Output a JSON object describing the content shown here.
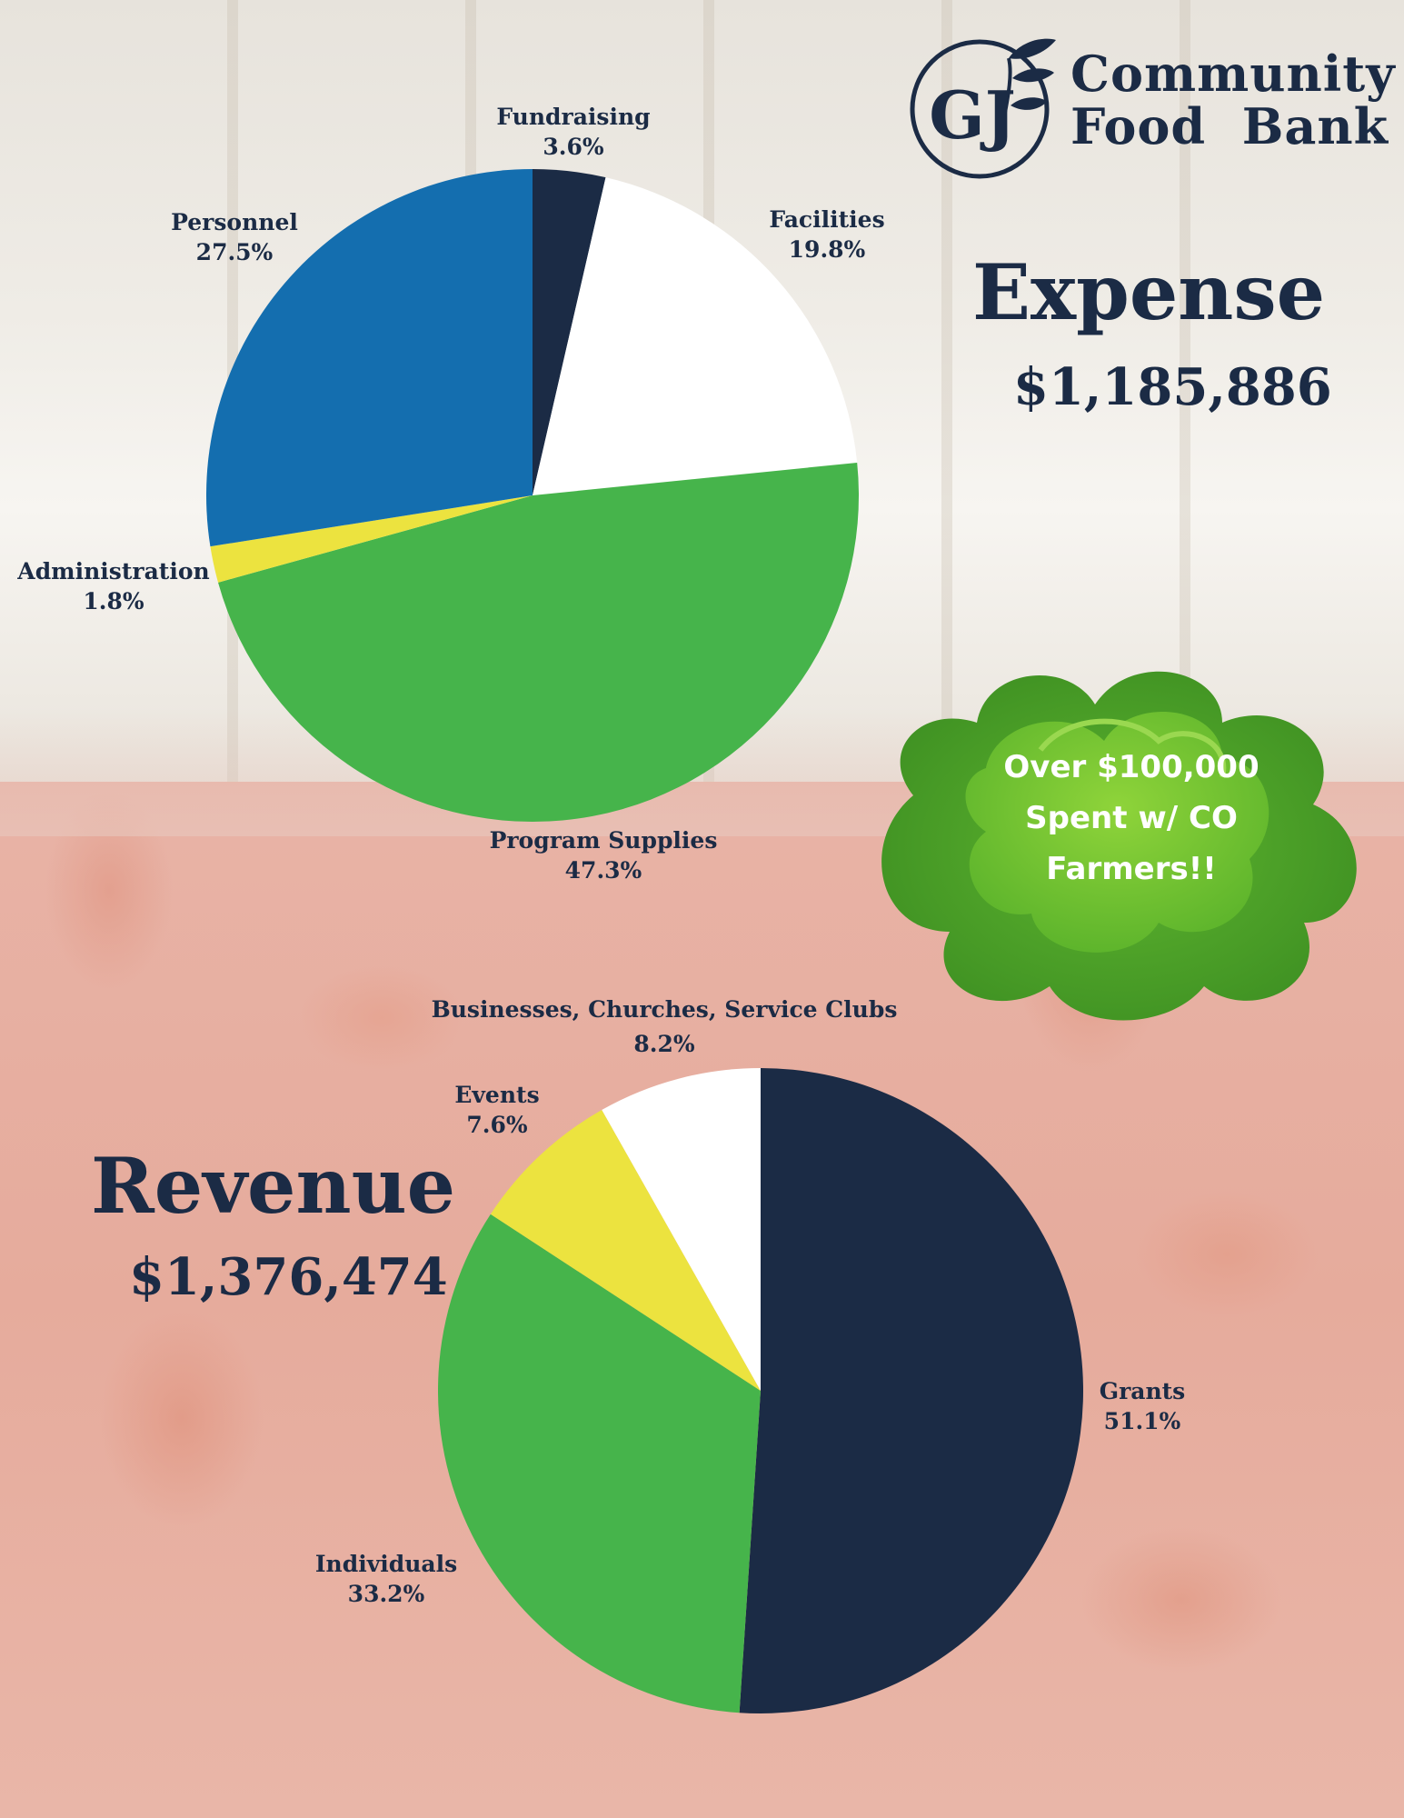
{
  "brand": {
    "logo_letters": "GJ",
    "name_line1": "Community",
    "name_line2": "Food  Bank",
    "navy": "#1b2b45",
    "green": "#46b44b",
    "blue": "#146eaf",
    "yellow": "#ece33f",
    "white": "#ffffff"
  },
  "callout": {
    "line1": "Over $100,000",
    "line2": "Spent w/ CO",
    "line3": "Farmers!!",
    "icon": "lettuce-icon"
  },
  "chart_data": [
    {
      "type": "pie",
      "title": "Expense",
      "subtitle": "$1,185,886",
      "slices": [
        {
          "label": "Fundraising",
          "value": 3.6,
          "display": "3.6%",
          "color": "#1b2b45"
        },
        {
          "label": "Facilities",
          "value": 19.8,
          "display": "19.8%",
          "color": "#ffffff"
        },
        {
          "label": "Program Supplies",
          "value": 47.3,
          "display": "47.3%",
          "color": "#46b44b"
        },
        {
          "label": "Administration",
          "value": 1.8,
          "display": "1.8%",
          "color": "#ece33f"
        },
        {
          "label": "Personnel",
          "value": 27.5,
          "display": "27.5%",
          "color": "#146eaf"
        }
      ]
    },
    {
      "type": "pie",
      "title": "Revenue",
      "subtitle": "$1,376,474",
      "slices": [
        {
          "label": "Grants",
          "value": 51.1,
          "display": "51.1%",
          "color": "#1b2b45"
        },
        {
          "label": "Individuals",
          "value": 33.2,
          "display": "33.2%",
          "color": "#46b44b"
        },
        {
          "label": "Events",
          "value": 7.6,
          "display": "7.6%",
          "color": "#ece33f"
        },
        {
          "label": "Businesses, Churches, Service Clubs",
          "value": 8.2,
          "display": "8.2%",
          "color": "#ffffff"
        }
      ]
    }
  ]
}
